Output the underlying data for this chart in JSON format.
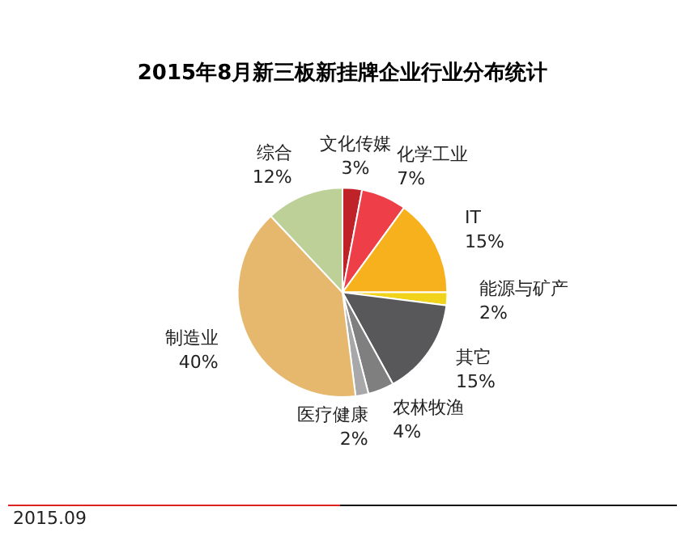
{
  "chart_data": {
    "type": "pie",
    "title": "2015年8月新三板新挂牌企业行业分布统计",
    "categories": [
      "文化传媒",
      "化学工业",
      "IT",
      "能源与矿产",
      "其它",
      "农林牧渔",
      "医疗健康",
      "制造业",
      "综合"
    ],
    "values": [
      3,
      7,
      15,
      2,
      15,
      4,
      2,
      40,
      12
    ],
    "value_labels": [
      "3%",
      "7%",
      "15%",
      "2%",
      "15%",
      "4%",
      "2%",
      "40%",
      "12%"
    ],
    "colors": [
      "#c0222a",
      "#ee3e48",
      "#f7b11c",
      "#f2d31b",
      "#58585a",
      "#7f7f80",
      "#a8a8aa",
      "#e6b86e",
      "#bcd098"
    ],
    "legend": false,
    "annotations": [
      "2015.09"
    ]
  }
}
